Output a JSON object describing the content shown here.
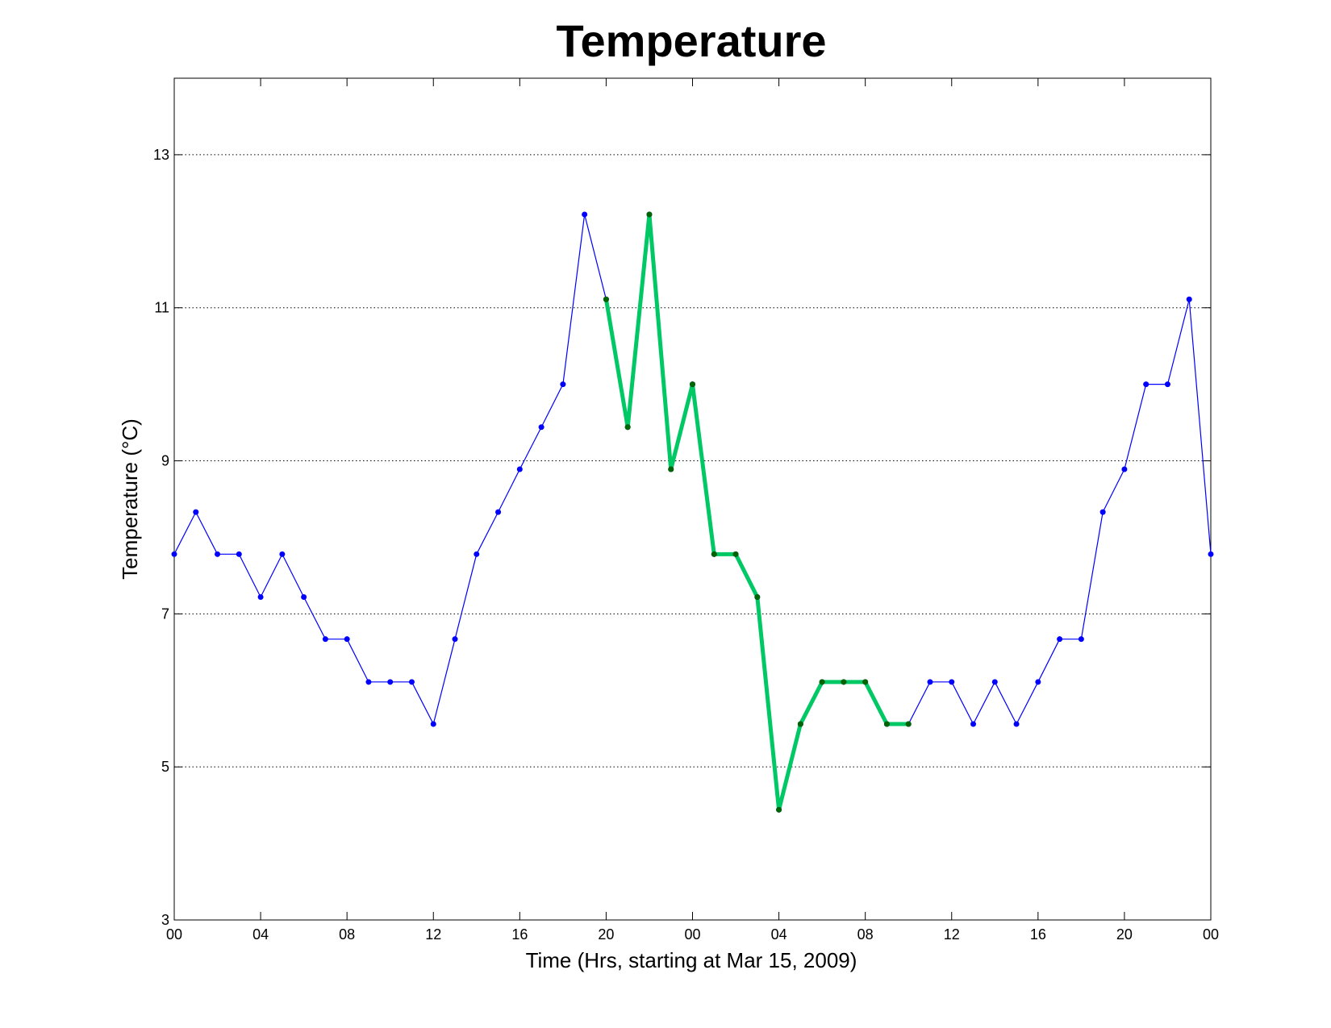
{
  "chart_data": {
    "type": "line",
    "title": "Temperature",
    "xlabel": "Time (Hrs, starting at Mar 15, 2009)",
    "ylabel": "Temperature (°C)",
    "x_start": "2009-03-15 00:00",
    "x_unit": "hours",
    "ylim": [
      3,
      14
    ],
    "yticks": [
      3,
      5,
      7,
      9,
      11,
      13
    ],
    "xlim": [
      0,
      48
    ],
    "xtick_hours": [
      0,
      4,
      8,
      12,
      16,
      20,
      24,
      28,
      32,
      36,
      40,
      44,
      48
    ],
    "xtick_labels": [
      "00",
      "04",
      "08",
      "12",
      "16",
      "20",
      "00",
      "04",
      "08",
      "12",
      "16",
      "20",
      "00"
    ],
    "grid": "y-dotted",
    "x": [
      0,
      1,
      2,
      3,
      4,
      5,
      6,
      7,
      8,
      9,
      10,
      11,
      12,
      13,
      14,
      15,
      16,
      17,
      18,
      19,
      20,
      21,
      22,
      23,
      24,
      25,
      26,
      27,
      28,
      29,
      30,
      31,
      32,
      33,
      34,
      35,
      36,
      37,
      38,
      39,
      40,
      41,
      42,
      43,
      44,
      45,
      46,
      47,
      48
    ],
    "y": [
      7.78,
      8.33,
      7.78,
      7.78,
      7.22,
      7.78,
      7.22,
      6.67,
      6.67,
      6.11,
      6.11,
      6.11,
      5.56,
      6.67,
      7.78,
      8.33,
      8.89,
      9.44,
      10.0,
      12.22,
      11.11,
      9.44,
      12.22,
      8.89,
      10.0,
      7.78,
      7.78,
      7.22,
      4.44,
      5.56,
      6.11,
      6.11,
      6.11,
      5.56,
      5.56,
      6.11,
      6.11,
      5.56,
      6.11,
      5.56,
      6.11,
      6.67,
      6.67,
      8.33,
      8.89,
      10.0,
      10.0,
      11.11,
      7.78
    ],
    "series": [
      {
        "line_color": "#0000ff",
        "marker_color": "#0000ff",
        "line_width": "thin",
        "range_hours": [
          0,
          48
        ]
      },
      {
        "line_color": "#00c864",
        "marker_color": "#006400",
        "line_width": "thick",
        "range_hours": [
          20,
          34
        ]
      }
    ]
  }
}
